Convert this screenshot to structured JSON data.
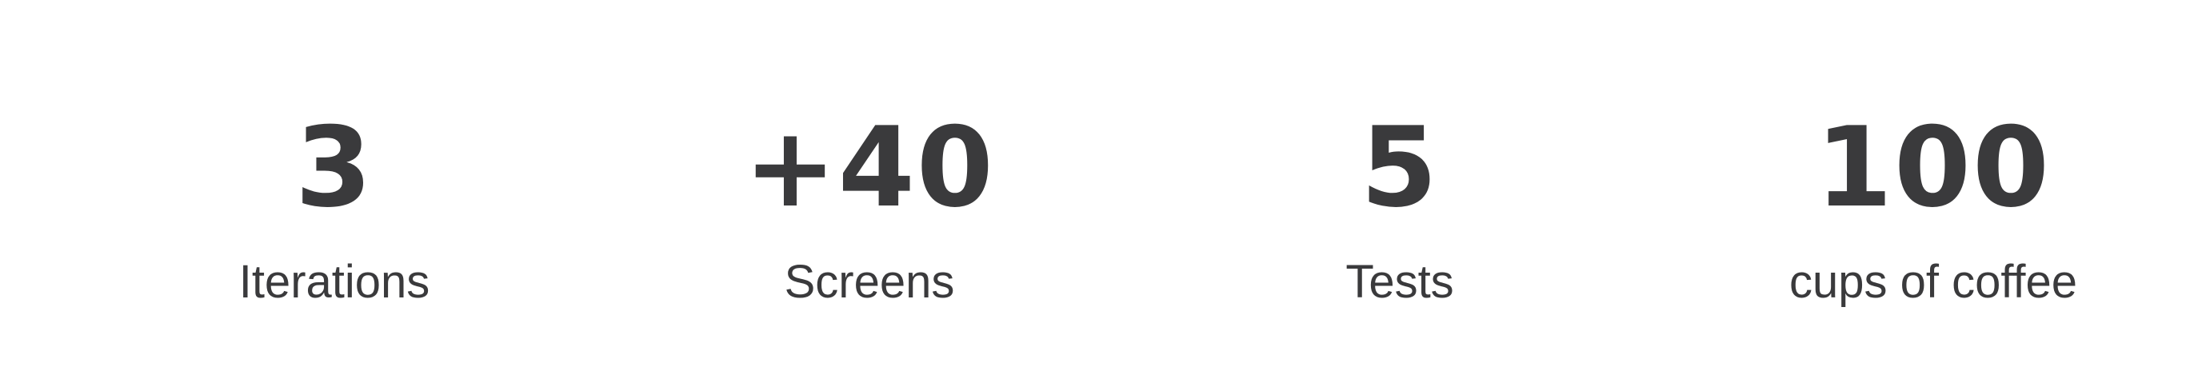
{
  "stats": [
    {
      "value": "3",
      "label": "Iterations"
    },
    {
      "value": "+40",
      "label": "Screens"
    },
    {
      "value": "5",
      "label": "Tests"
    },
    {
      "value": "100",
      "label": "cups of coffee"
    }
  ],
  "colors": {
    "background": "#ffffff",
    "text": "#3a3a3c"
  }
}
